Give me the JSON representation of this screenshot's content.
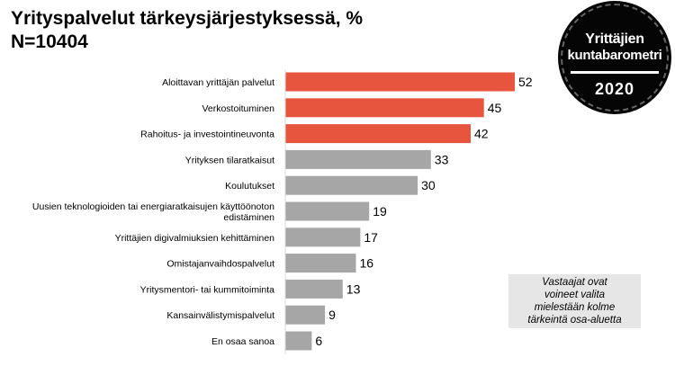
{
  "title": {
    "line1": "Yrityspalvelut tärkeysjärjestyksessä, %",
    "line2": "N=10404"
  },
  "badge": {
    "line1": "Yrittäjien",
    "line2": "kuntabarometri",
    "year": "2020"
  },
  "note": {
    "line1": "Vastaajat ovat",
    "line2": "voineet valita",
    "line3": "mielestään kolme",
    "line4": "tärkeintä osa-aluetta"
  },
  "colors": {
    "highlight": "#e8553e",
    "default": "#a6a6a6"
  },
  "chart_data": {
    "type": "bar",
    "orientation": "horizontal",
    "title": "Yrityspalvelut tärkeysjärjestyksessä, %",
    "subtitle": "N=10404",
    "xlabel": "",
    "ylabel": "",
    "xlim": [
      0,
      60
    ],
    "grid": false,
    "categories": [
      [
        "Aloittavan yrittäjän palvelut"
      ],
      [
        "Verkostoituminen"
      ],
      [
        "Rahoitus- ja investointineuvonta"
      ],
      [
        "Yrityksen tilaratkaisut"
      ],
      [
        "Koulutukset"
      ],
      [
        "Uusien teknologioiden tai energiaratkaisujen käyttöönoton",
        "edistäminen"
      ],
      [
        "Yrittäjien digivalmiuksien kehittäminen"
      ],
      [
        "Omistajanvaihdospalvelut"
      ],
      [
        "Yritysmentori- tai kummitoiminta"
      ],
      [
        "Kansainvälistymispalvelut"
      ],
      [
        "En osaa sanoa"
      ]
    ],
    "values": [
      52,
      45,
      42,
      33,
      30,
      19,
      17,
      16,
      13,
      9,
      6
    ],
    "highlighted": [
      true,
      true,
      true,
      false,
      false,
      false,
      false,
      false,
      false,
      false,
      false
    ]
  }
}
